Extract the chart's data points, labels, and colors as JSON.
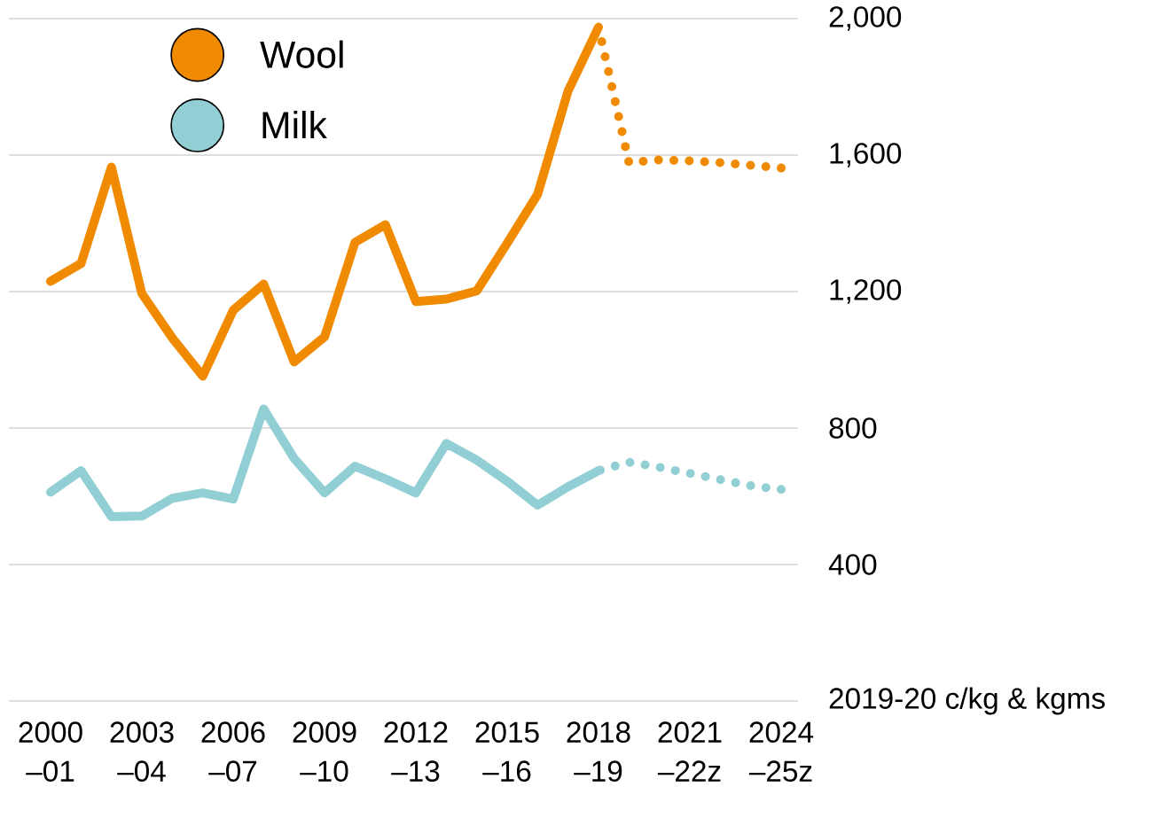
{
  "chart_data": {
    "type": "line",
    "categories": [
      "2000 –01",
      null,
      null,
      "2003 –04",
      null,
      null,
      "2006 –07",
      null,
      null,
      "2009 –10",
      null,
      null,
      "2012 –13",
      null,
      null,
      "2015 –16",
      null,
      null,
      "2018 –19",
      null,
      null,
      "2021 –22z",
      null,
      null,
      "2024 –25z"
    ],
    "series": [
      {
        "name": "Wool",
        "color": "#f08a00",
        "values": [
          1230,
          1282,
          1565,
          1194,
          1064,
          952,
          1145,
          1222,
          994,
          1067,
          1344,
          1396,
          1171,
          1178,
          1202,
          1342,
          1485,
          1788,
          1975,
          null,
          null,
          null,
          null,
          null,
          null
        ]
      },
      {
        "color": "#f08a00",
        "line_style": "dotted",
        "values": [
          null,
          null,
          null,
          null,
          null,
          null,
          null,
          null,
          null,
          null,
          null,
          null,
          null,
          null,
          null,
          null,
          null,
          null,
          1975,
          1578,
          1586,
          1583,
          1578,
          1570,
          1562
        ]
      },
      {
        "name": "Milk",
        "color": "#92cfd4",
        "values": [
          612,
          675,
          540,
          542,
          594,
          610,
          592,
          856,
          711,
          610,
          688,
          651,
          610,
          755,
          706,
          644,
          574,
          628,
          675,
          null,
          null,
          null,
          null,
          null,
          null
        ]
      },
      {
        "color": "#92cfd4",
        "line_style": "dotted",
        "values": [
          null,
          null,
          null,
          null,
          null,
          null,
          null,
          null,
          null,
          null,
          null,
          null,
          null,
          null,
          null,
          null,
          null,
          null,
          675,
          700,
          685,
          667,
          649,
          631,
          620
        ]
      }
    ],
    "ylabel": "2019-20 c/kg & kgms",
    "ylim": [
      0,
      2000
    ],
    "yticks": [
      {
        "value": 0,
        "label": null
      },
      400,
      800,
      {
        "value": 1200,
        "label": "1,200"
      },
      {
        "value": 1600,
        "label": "1,600"
      },
      {
        "value": 2000,
        "label": "2,000"
      }
    ],
    "grid": "y",
    "legend": "top left",
    "marker": "none",
    "line_style": "solid"
  }
}
